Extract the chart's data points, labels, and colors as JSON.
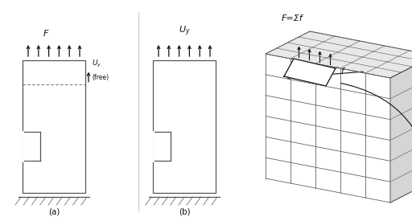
{
  "fig_width": 5.12,
  "fig_height": 2.7,
  "dpi": 100,
  "bg_color": "#ffffff",
  "line_color": "#555555",
  "dark_color": "#111111",
  "label_a": "(a)",
  "label_b": "(b)",
  "label_F": "F",
  "label_Fsum": "F=Σf",
  "label_f": "f"
}
